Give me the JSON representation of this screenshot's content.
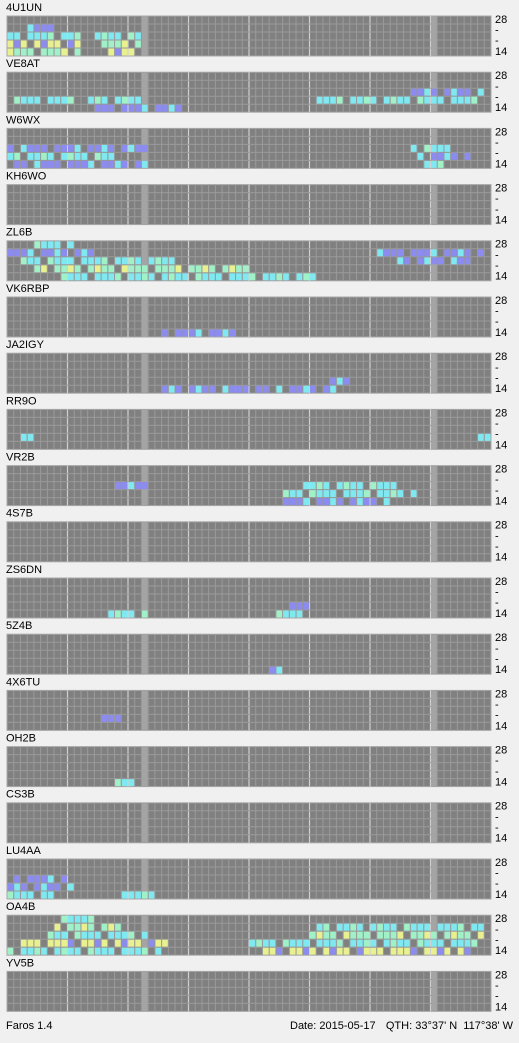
{
  "beacons": [
    "4U1UN",
    "VE8AT",
    "W6WX",
    "KH6WO",
    "ZL6B",
    "VK6RBP",
    "JA2IGY",
    "RR9O",
    "VR2B",
    "4S7B",
    "ZS6DN",
    "5Z4B",
    "4X6TU",
    "OH2B",
    "CS3B",
    "LU4AA",
    "OA4B",
    "YV5B"
  ],
  "band_labels": [
    "28",
    "-",
    "-",
    "14"
  ],
  "footer": {
    "app": "Faros 1.4",
    "date": "Date: 2015-05-17",
    "qth": "QTH: 33°37' N  117°38' W"
  }
}
